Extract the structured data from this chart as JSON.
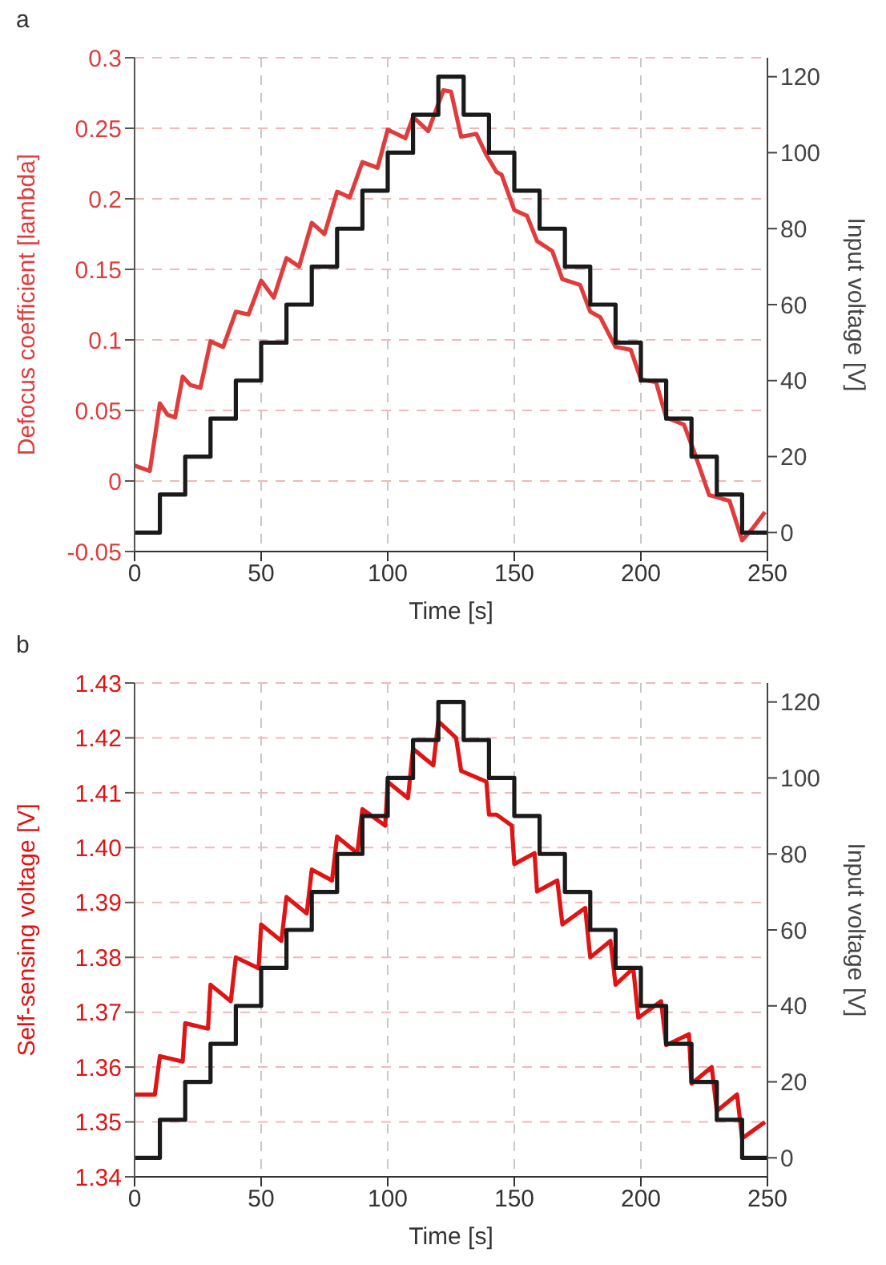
{
  "chart_data": [
    {
      "type": "line",
      "annotations": [
        "a"
      ],
      "xlabel": "Time [s]",
      "ylabel": "Defocus coefficient [lambda]",
      "y2label": "Input voltage [V]",
      "xlim": [
        0,
        250
      ],
      "xticks": [
        0,
        50,
        100,
        150,
        200,
        250
      ],
      "ylim": [
        -0.05,
        0.3
      ],
      "yticks": [
        -0.05,
        0,
        0.05,
        0.1,
        0.15,
        0.2,
        0.25,
        0.3
      ],
      "y2lim": [
        -5,
        125
      ],
      "y2ticks": [
        0,
        20,
        40,
        60,
        80,
        100,
        120
      ],
      "grid": true,
      "series": [
        {
          "color": "#e03c3c",
          "x": [
            0,
            6,
            10,
            13,
            16,
            19,
            22,
            26,
            30,
            35,
            40,
            45,
            50,
            55,
            60,
            65,
            70,
            75,
            80,
            85,
            90,
            96,
            100,
            107,
            110,
            116,
            122,
            125,
            129,
            135,
            139,
            143,
            145,
            150,
            155,
            159,
            165,
            169,
            176,
            180,
            184,
            190,
            196,
            200,
            206,
            210,
            217,
            221,
            227,
            235,
            240,
            244,
            249
          ],
          "values": [
            0.011,
            0.007,
            0.055,
            0.047,
            0.045,
            0.074,
            0.068,
            0.066,
            0.099,
            0.095,
            0.12,
            0.118,
            0.142,
            0.13,
            0.158,
            0.152,
            0.183,
            0.175,
            0.205,
            0.201,
            0.226,
            0.222,
            0.249,
            0.243,
            0.258,
            0.248,
            0.277,
            0.276,
            0.244,
            0.246,
            0.231,
            0.219,
            0.217,
            0.192,
            0.188,
            0.17,
            0.163,
            0.143,
            0.139,
            0.12,
            0.116,
            0.095,
            0.093,
            0.072,
            0.07,
            0.045,
            0.04,
            0.021,
            -0.01,
            -0.014,
            -0.042,
            -0.034,
            -0.022
          ]
        },
        {
          "type": "step",
          "axis": "y2",
          "color": "#1a1a1a",
          "x": [
            0,
            10,
            20,
            30,
            40,
            50,
            60,
            70,
            80,
            90,
            100,
            110,
            120,
            130,
            140,
            150,
            160,
            170,
            180,
            190,
            200,
            210,
            220,
            230,
            240,
            250
          ],
          "values": [
            0,
            10,
            20,
            30,
            40,
            50,
            60,
            70,
            80,
            90,
            100,
            110,
            120,
            110,
            100,
            90,
            80,
            70,
            60,
            50,
            40,
            30,
            20,
            10,
            0,
            0
          ]
        }
      ]
    },
    {
      "type": "line",
      "annotations": [
        "b"
      ],
      "xlabel": "Time [s]",
      "ylabel": "Self-sensing voltage [V]",
      "y2label": "Input voltage [V]",
      "xlim": [
        0,
        250
      ],
      "xticks": [
        0,
        50,
        100,
        150,
        200,
        250
      ],
      "ylim": [
        1.34,
        1.43
      ],
      "yticks": [
        1.34,
        1.35,
        1.36,
        1.37,
        1.38,
        1.39,
        {
          "value": 1.4,
          "label": "1.40"
        },
        1.41,
        1.42,
        1.43
      ],
      "y2lim": [
        -5,
        125
      ],
      "y2ticks": [
        0,
        20,
        40,
        60,
        80,
        100,
        120
      ],
      "grid": true,
      "series": [
        {
          "color": "#e01414",
          "x": [
            0,
            8,
            10,
            19,
            20,
            29,
            30,
            38,
            40,
            49,
            50,
            58,
            60,
            68,
            70,
            78,
            80,
            88,
            90,
            99,
            100,
            108,
            110,
            118,
            120,
            127,
            129,
            139,
            140,
            143,
            149,
            150,
            158,
            159,
            167,
            169,
            178,
            180,
            188,
            190,
            197,
            199,
            208,
            210,
            219,
            220,
            228,
            230,
            238,
            240,
            249
          ],
          "values": [
            1.355,
            1.355,
            1.362,
            1.361,
            1.368,
            1.367,
            1.375,
            1.372,
            1.38,
            1.378,
            1.386,
            1.383,
            1.391,
            1.388,
            1.396,
            1.394,
            1.402,
            1.399,
            1.407,
            1.404,
            1.412,
            1.409,
            1.418,
            1.415,
            1.423,
            1.42,
            1.414,
            1.412,
            1.406,
            1.406,
            1.404,
            1.397,
            1.399,
            1.392,
            1.394,
            1.386,
            1.389,
            1.38,
            1.383,
            1.375,
            1.378,
            1.369,
            1.372,
            1.364,
            1.366,
            1.357,
            1.36,
            1.352,
            1.355,
            1.347,
            1.35
          ]
        },
        {
          "type": "step",
          "axis": "y2",
          "color": "#1a1a1a",
          "x": [
            0,
            10,
            20,
            30,
            40,
            50,
            60,
            70,
            80,
            90,
            100,
            110,
            120,
            130,
            140,
            150,
            160,
            170,
            180,
            190,
            200,
            210,
            220,
            230,
            240,
            250
          ],
          "values": [
            0,
            10,
            20,
            30,
            40,
            50,
            60,
            70,
            80,
            90,
            100,
            110,
            120,
            110,
            100,
            90,
            80,
            70,
            60,
            50,
            40,
            30,
            20,
            10,
            0,
            0
          ]
        }
      ]
    }
  ]
}
